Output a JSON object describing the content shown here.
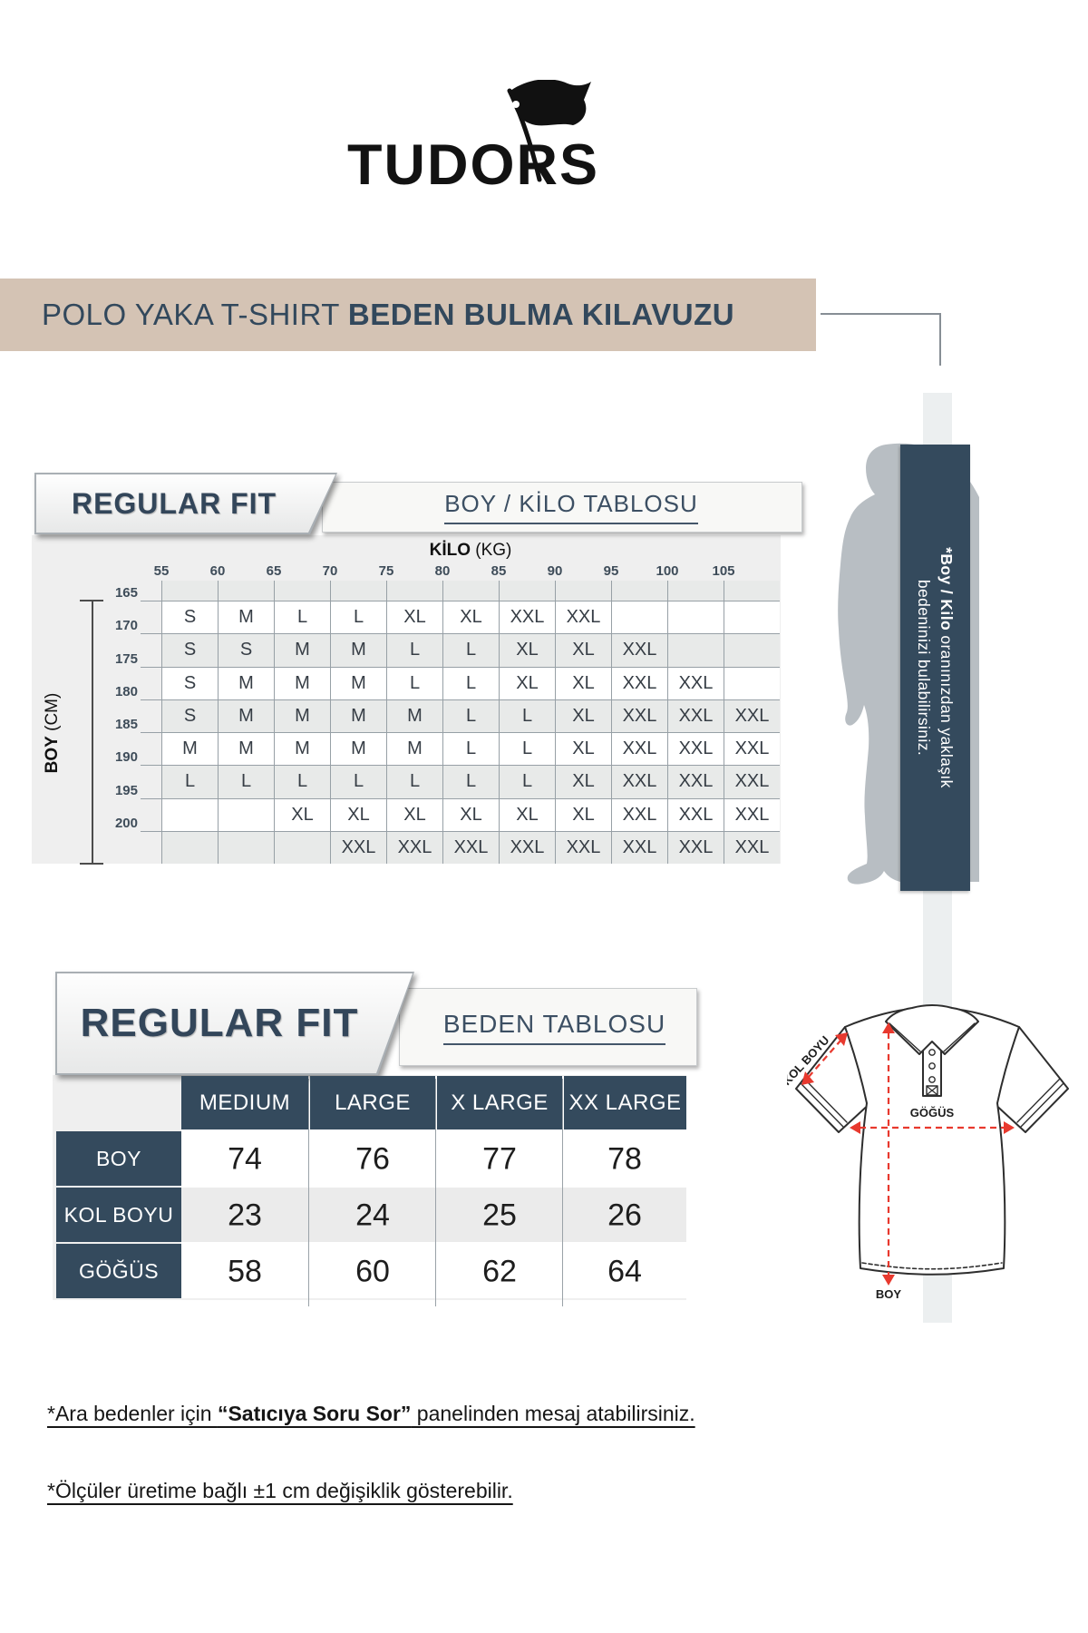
{
  "logo": {
    "text": "TUDORS"
  },
  "banner": {
    "regular": "POLO YAKA T-SHIRT ",
    "bold": "BEDEN BULMA KILAVUZU"
  },
  "colors": {
    "accent_navy": "#344a5d",
    "banner_beige": "#d4c3b4",
    "panel_gray": "#efefef",
    "alt_row_gray": "#e8eae9",
    "measure_red": "#e8392e",
    "silhouette_gray": "#b8bec3"
  },
  "section1": {
    "fit": "REGULAR FIT",
    "title": "BOY / KİLO TABLOSU",
    "axis_x_bold": "KİLO",
    "axis_x_unit": " (KG)",
    "axis_y_bold": "BOY",
    "axis_y_unit": " (CM)",
    "x_ticks": [
      "55",
      "60",
      "65",
      "70",
      "75",
      "80",
      "85",
      "90",
      "95",
      "100",
      "105"
    ],
    "y_ticks": [
      "165",
      "170",
      "175",
      "180",
      "185",
      "190",
      "195",
      "200"
    ],
    "grid": [
      [
        "S",
        "M",
        "L",
        "L",
        "XL",
        "XL",
        "XXL",
        "XXL",
        "",
        "",
        ""
      ],
      [
        "S",
        "S",
        "M",
        "M",
        "L",
        "L",
        "XL",
        "XL",
        "XXL",
        "",
        ""
      ],
      [
        "S",
        "M",
        "M",
        "M",
        "L",
        "L",
        "XL",
        "XL",
        "XXL",
        "XXL",
        ""
      ],
      [
        "S",
        "M",
        "M",
        "M",
        "M",
        "L",
        "L",
        "XL",
        "XXL",
        "XXL",
        "XXL"
      ],
      [
        "M",
        "M",
        "M",
        "M",
        "M",
        "L",
        "L",
        "XL",
        "XXL",
        "XXL",
        "XXL"
      ],
      [
        "L",
        "L",
        "L",
        "L",
        "L",
        "L",
        "L",
        "XL",
        "XXL",
        "XXL",
        "XXL"
      ],
      [
        "",
        "",
        "XL",
        "XL",
        "XL",
        "XL",
        "XL",
        "XL",
        "XXL",
        "XXL",
        "XXL"
      ],
      [
        "",
        "",
        "",
        "XXL",
        "XXL",
        "XXL",
        "XXL",
        "XXL",
        "XXL",
        "XXL",
        "XXL"
      ]
    ]
  },
  "side_note": {
    "bold": "*Boy / Kilo",
    "line1_rest": " oranınızdan yaklaşık",
    "line2": "bedeninizi bulabilirsiniz."
  },
  "section2": {
    "fit": "REGULAR FIT",
    "title": "BEDEN TABLOSU",
    "columns": [
      "MEDIUM",
      "LARGE",
      "X LARGE",
      "XX LARGE"
    ],
    "rows": [
      {
        "label": "BOY",
        "values": [
          "74",
          "76",
          "77",
          "78"
        ]
      },
      {
        "label": "KOL BOYU",
        "values": [
          "23",
          "24",
          "25",
          "26"
        ]
      },
      {
        "label": "GÖĞÜS",
        "values": [
          "58",
          "60",
          "62",
          "64"
        ]
      }
    ]
  },
  "shirt": {
    "kol_boyu": "KOL BOYU",
    "gogus": "GÖĞÜS",
    "boy": "BOY"
  },
  "footnotes": {
    "n1_pre": "*Ara bedenler için ",
    "n1_bold": "“Satıcıya Soru Sor”",
    "n1_post": " panelinden mesaj atabilirsiniz.",
    "n2": "*Ölçüler üretime bağlı ±1 cm değişiklik gösterebilir."
  },
  "chart_data": [
    {
      "type": "heatmap",
      "title": "BOY / KİLO TABLOSU",
      "xlabel": "KİLO (KG)",
      "ylabel": "BOY (CM)",
      "x_ticks": [
        55,
        60,
        65,
        70,
        75,
        80,
        85,
        90,
        95,
        100,
        105
      ],
      "y_ticks": [
        165,
        170,
        175,
        180,
        185,
        190,
        195,
        200
      ],
      "grid_on": true,
      "cells": [
        [
          "S",
          "M",
          "L",
          "L",
          "XL",
          "XL",
          "XXL",
          "XXL",
          "",
          "",
          ""
        ],
        [
          "S",
          "S",
          "M",
          "M",
          "L",
          "L",
          "XL",
          "XL",
          "XXL",
          "",
          ""
        ],
        [
          "S",
          "M",
          "M",
          "M",
          "L",
          "L",
          "XL",
          "XL",
          "XXL",
          "XXL",
          ""
        ],
        [
          "S",
          "M",
          "M",
          "M",
          "M",
          "L",
          "L",
          "XL",
          "XXL",
          "XXL",
          "XXL"
        ],
        [
          "M",
          "M",
          "M",
          "M",
          "M",
          "L",
          "L",
          "XL",
          "XXL",
          "XXL",
          "XXL"
        ],
        [
          "L",
          "L",
          "L",
          "L",
          "L",
          "L",
          "L",
          "XL",
          "XXL",
          "XXL",
          "XXL"
        ],
        [
          "",
          "",
          "XL",
          "XL",
          "XL",
          "XL",
          "XL",
          "XL",
          "XXL",
          "XXL",
          "XXL"
        ],
        [
          "",
          "",
          "",
          "XXL",
          "XXL",
          "XXL",
          "XXL",
          "XXL",
          "XXL",
          "XXL",
          "XXL"
        ]
      ]
    },
    {
      "type": "table",
      "title": "BEDEN TABLOSU",
      "columns": [
        "",
        "MEDIUM",
        "LARGE",
        "X LARGE",
        "XX LARGE"
      ],
      "rows": [
        [
          "BOY",
          74,
          76,
          77,
          78
        ],
        [
          "KOL BOYU",
          23,
          24,
          25,
          26
        ],
        [
          "GÖĞÜS",
          58,
          60,
          62,
          64
        ]
      ]
    }
  ]
}
